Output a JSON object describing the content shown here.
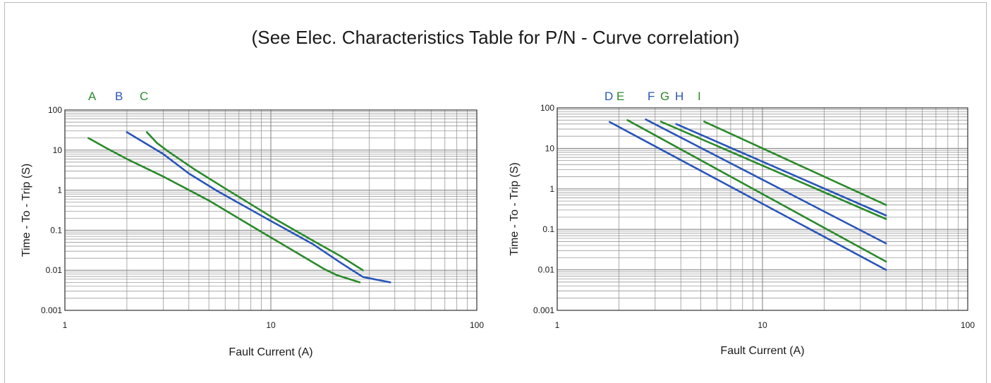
{
  "title": "(See Elec. Characteristics Table for P/N - Curve correlation)",
  "colors": {
    "green": "#2b8a2b",
    "blue": "#2a55b8",
    "grid": "#8a8a8a",
    "frame": "#b9b9b9"
  },
  "chart_data": [
    {
      "type": "line",
      "xlabel": "Fault Current (A)",
      "ylabel": "Time - To - Trip (S)",
      "xscale": "log",
      "yscale": "log",
      "xlim": [
        1,
        100
      ],
      "ylim": [
        0.001,
        100
      ],
      "xticks": [
        "1",
        "10",
        "100"
      ],
      "yticks": [
        "100",
        "10",
        "1",
        "0.1",
        "0.01",
        "0.001"
      ],
      "grid": true,
      "series": [
        {
          "name": "A",
          "color": "green",
          "points": [
            [
              1.3,
              20
            ],
            [
              1.6,
              11
            ],
            [
              2,
              6
            ],
            [
              3,
              2.2
            ],
            [
              5,
              0.55
            ],
            [
              8,
              0.13
            ],
            [
              12,
              0.038
            ],
            [
              18,
              0.011
            ],
            [
              21,
              0.0075
            ],
            [
              27,
              0.005
            ]
          ]
        },
        {
          "name": "B",
          "color": "blue",
          "points": [
            [
              2.0,
              28
            ],
            [
              2.4,
              16
            ],
            [
              3,
              8
            ],
            [
              4,
              2.6
            ],
            [
              5.5,
              0.95
            ],
            [
              10,
              0.17
            ],
            [
              16,
              0.045
            ],
            [
              22,
              0.015
            ],
            [
              28,
              0.0068
            ],
            [
              38,
              0.005
            ]
          ]
        },
        {
          "name": "C",
          "color": "green",
          "points": [
            [
              2.5,
              28
            ],
            [
              2.8,
              15
            ],
            [
              3.2,
              9
            ],
            [
              4.3,
              3.2
            ],
            [
              6,
              1.1
            ],
            [
              10,
              0.22
            ],
            [
              16,
              0.055
            ],
            [
              22,
              0.022
            ],
            [
              28,
              0.01
            ]
          ]
        }
      ]
    },
    {
      "type": "line",
      "xlabel": "Fault Current (A)",
      "ylabel": "Time - To - Trip (S)",
      "xscale": "log",
      "yscale": "log",
      "xlim": [
        1,
        100
      ],
      "ylim": [
        0.001,
        100
      ],
      "xticks": [
        "1",
        "10",
        "100"
      ],
      "yticks": [
        "100",
        "10",
        "1",
        "0.1",
        "0.01",
        "0.001"
      ],
      "grid": true,
      "series": [
        {
          "name": "D",
          "color": "blue",
          "points": [
            [
              1.8,
              45
            ],
            [
              40,
              0.01
            ]
          ]
        },
        {
          "name": "E",
          "color": "green",
          "points": [
            [
              2.2,
              50
            ],
            [
              40,
              0.016
            ]
          ]
        },
        {
          "name": "F",
          "color": "blue",
          "points": [
            [
              2.7,
              52
            ],
            [
              40,
              0.045
            ]
          ]
        },
        {
          "name": "G",
          "color": "green",
          "points": [
            [
              3.2,
              46
            ],
            [
              40,
              0.18
            ]
          ]
        },
        {
          "name": "H",
          "color": "blue",
          "points": [
            [
              3.8,
              40
            ],
            [
              40,
              0.22
            ]
          ]
        },
        {
          "name": "I",
          "color": "green",
          "points": [
            [
              5.2,
              46
            ],
            [
              40,
              0.4
            ]
          ]
        }
      ]
    }
  ]
}
